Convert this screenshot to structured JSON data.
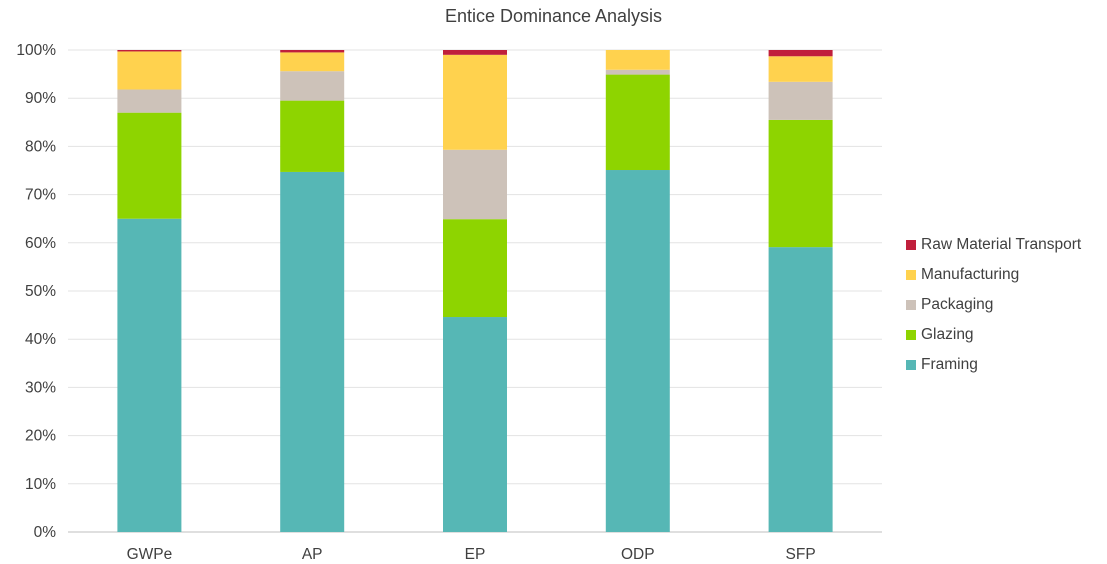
{
  "chart_data": {
    "type": "bar",
    "stacked": "percent",
    "title": "Entice Dominance Analysis",
    "xlabel": "",
    "ylabel": "",
    "ylim": [
      0,
      100
    ],
    "yticks": [
      "0%",
      "10%",
      "20%",
      "30%",
      "40%",
      "50%",
      "60%",
      "70%",
      "80%",
      "90%",
      "100%"
    ],
    "grid": true,
    "legend_position": "right",
    "categories": [
      "GWPe",
      "AP",
      "EP",
      "ODP",
      "SFP"
    ],
    "series": [
      {
        "name": "Framing",
        "color": "#56b7b5",
        "values": [
          65,
          74.7,
          44.6,
          75.1,
          59.1
        ]
      },
      {
        "name": "Glazing",
        "color": "#8ed400",
        "values": [
          22,
          14.8,
          20.3,
          19.8,
          26.4
        ]
      },
      {
        "name": "Packaging",
        "color": "#cdc2b9",
        "values": [
          4.8,
          6.1,
          14.4,
          1,
          7.9
        ]
      },
      {
        "name": "Manufacturing",
        "color": "#ffd24e",
        "values": [
          7.9,
          3.9,
          19.7,
          4.1,
          5.3
        ]
      },
      {
        "name": "Raw Material Transport",
        "color": "#c01f3c",
        "values": [
          0.3,
          0.5,
          1,
          0,
          1.3
        ]
      }
    ],
    "legend_order": [
      "Raw Material Transport",
      "Manufacturing",
      "Packaging",
      "Glazing",
      "Framing"
    ]
  }
}
